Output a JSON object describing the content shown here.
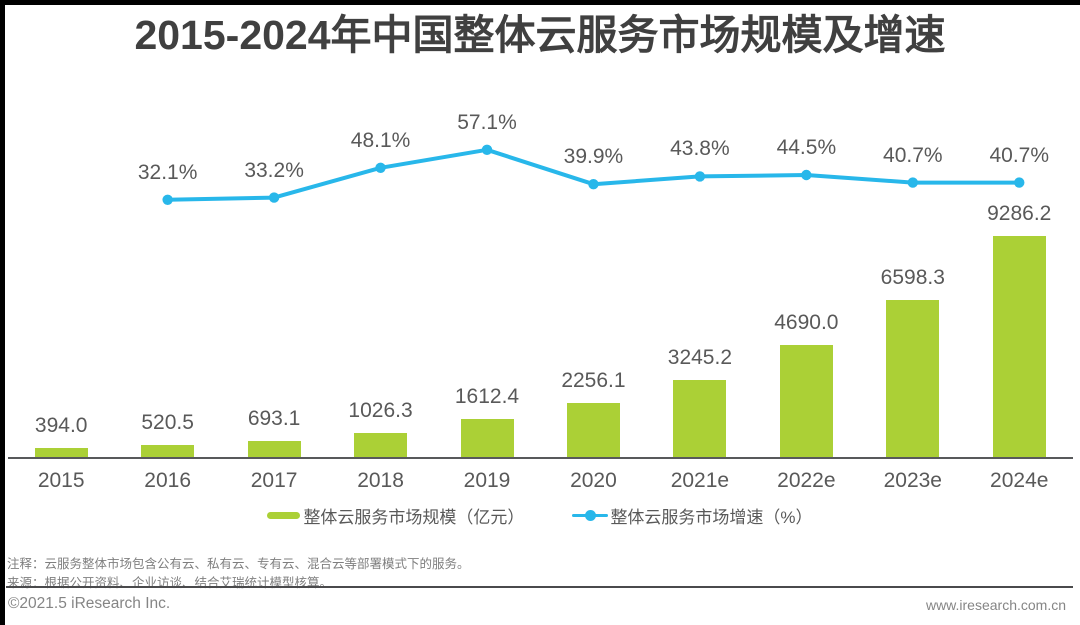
{
  "title": "2015-2024年中国整体云服务市场规模及增速",
  "chart_data": {
    "type": "bar+line",
    "categories": [
      "2015",
      "2016",
      "2017",
      "2018",
      "2019",
      "2020",
      "2021e",
      "2022e",
      "2023e",
      "2024e"
    ],
    "series": [
      {
        "name": "整体云服务市场规模（亿元）",
        "type": "bar",
        "color": "#abd036",
        "values": [
          394.0,
          520.5,
          693.1,
          1026.3,
          1612.4,
          2256.1,
          3245.2,
          4690.0,
          6598.3,
          9286.2
        ]
      },
      {
        "name": "整体云服务市场增速（%）",
        "type": "line",
        "color": "#28b7ea",
        "unit": "%",
        "values": [
          null,
          32.1,
          33.2,
          48.1,
          57.1,
          39.9,
          43.8,
          44.5,
          40.7,
          40.7
        ]
      }
    ],
    "title": "2015-2024年中国整体云服务市场规模及增速",
    "xlabel": "",
    "ylabel": "",
    "legend_position": "bottom",
    "grid": false
  },
  "legend": {
    "items": [
      {
        "label": "整体云服务市场规模（亿元）",
        "swatch": "bar-swatch-green"
      },
      {
        "label": "整体云服务市场增速（%）",
        "swatch": "line-swatch-blue"
      }
    ]
  },
  "notes": {
    "line1": "注释：云服务整体市场包含公有云、私有云、专有云、混合云等部署模式下的服务。",
    "line2": "来源：根据公开资料、企业访谈、结合艾瑞统计模型核算。"
  },
  "footer": {
    "left": "©2021.5 iResearch Inc.",
    "right": "www.iresearch.com.cn"
  },
  "colors": {
    "bar": "#abd036",
    "line": "#28b7ea",
    "title_text": "#404040",
    "label_text": "#595959",
    "note_text": "#7f7f7f",
    "footer_text": "#858585",
    "axis": "#58595b",
    "edge": "#000000"
  }
}
